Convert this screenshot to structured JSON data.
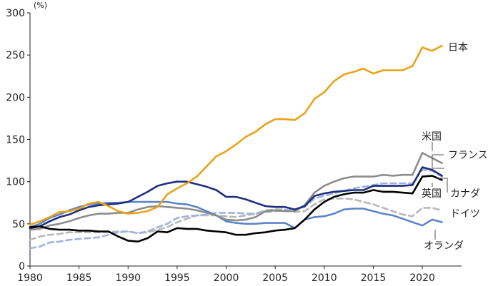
{
  "chart_data": {
    "type": "line",
    "title": "",
    "xlabel": "",
    "ylabel": "(%)",
    "xlim": [
      1980,
      2024
    ],
    "ylim": [
      0,
      300
    ],
    "xticks": [
      1980,
      1985,
      1990,
      1995,
      2000,
      2005,
      2010,
      2015,
      2020
    ],
    "yticks": [
      0,
      50,
      100,
      150,
      200,
      250,
      300
    ],
    "grid": false,
    "legend": "direct-labels",
    "x": [
      1980,
      1981,
      1982,
      1983,
      1984,
      1985,
      1986,
      1987,
      1988,
      1989,
      1990,
      1991,
      1992,
      1993,
      1994,
      1995,
      1996,
      1997,
      1998,
      1999,
      2000,
      2001,
      2002,
      2003,
      2004,
      2005,
      2006,
      2007,
      2008,
      2009,
      2010,
      2011,
      2012,
      2013,
      2014,
      2015,
      2016,
      2017,
      2018,
      2019,
      2020,
      2021,
      2022
    ],
    "series": [
      {
        "name": "日本",
        "color": "#E8A317",
        "dash": false,
        "values": [
          49,
          53,
          58,
          64,
          65,
          68,
          74,
          76,
          71,
          65,
          62,
          63,
          65,
          70,
          85,
          92,
          98,
          106,
          118,
          130,
          136,
          144,
          153,
          159,
          168,
          174,
          174,
          173,
          181,
          198,
          206,
          219,
          227,
          230,
          234,
          228,
          232,
          232,
          232,
          237,
          259,
          255,
          261
        ]
      },
      {
        "name": "米国",
        "color": "#8C8C8C",
        "dash": false,
        "values": [
          43,
          44,
          48,
          50,
          53,
          57,
          60,
          62,
          62,
          63,
          63,
          67,
          70,
          71,
          70,
          69,
          68,
          66,
          63,
          60,
          55,
          54,
          55,
          58,
          65,
          66,
          65,
          65,
          72,
          87,
          95,
          100,
          104,
          106,
          106,
          106,
          108,
          107,
          108,
          108,
          134,
          128,
          122
        ]
      },
      {
        "name": "フランス",
        "color": "#1E2F7F",
        "dash": false,
        "values": [
          45,
          47,
          53,
          58,
          61,
          66,
          70,
          72,
          73,
          74,
          76,
          82,
          88,
          95,
          98,
          100,
          100,
          97,
          94,
          90,
          82,
          82,
          79,
          75,
          71,
          70,
          70,
          67,
          71,
          83,
          86,
          88,
          89,
          90,
          90,
          95,
          95,
          95,
          95,
          96,
          117,
          114,
          107
        ]
      },
      {
        "name": "英国",
        "color": "#000000",
        "dash": false,
        "values": [
          46,
          47,
          44,
          43,
          43,
          42,
          42,
          41,
          41,
          35,
          30,
          29,
          33,
          41,
          40,
          45,
          44,
          44,
          42,
          41,
          40,
          37,
          37,
          39,
          40,
          42,
          43,
          45,
          55,
          67,
          76,
          82,
          85,
          87,
          87,
          90,
          88,
          88,
          87,
          86,
          106,
          107,
          102
        ]
      },
      {
        "name": "カナダ",
        "color": "#9FB2DE",
        "dash": true,
        "values": [
          21,
          23,
          28,
          29,
          31,
          32,
          33,
          34,
          37,
          40,
          41,
          39,
          41,
          46,
          50,
          57,
          59,
          60,
          61,
          63,
          63,
          63,
          62,
          62,
          64,
          65,
          66,
          67,
          70,
          80,
          83,
          86,
          89,
          92,
          94,
          96,
          98,
          98,
          98,
          98,
          114,
          113,
          106
        ]
      },
      {
        "name": "ドイツ",
        "color": "#B8B8B8",
        "dash": true,
        "values": [
          31,
          35,
          37,
          38,
          40,
          40,
          40,
          40,
          40,
          41,
          41,
          39,
          40,
          43,
          46,
          52,
          56,
          60,
          60,
          60,
          59,
          58,
          60,
          62,
          66,
          67,
          67,
          64,
          65,
          73,
          79,
          80,
          80,
          79,
          76,
          73,
          69,
          65,
          61,
          59,
          69,
          69,
          66
        ]
      },
      {
        "name": "オランダ",
        "color": "#5C85C8",
        "dash": false,
        "values": [
          46,
          50,
          57,
          61,
          66,
          70,
          73,
          74,
          75,
          75,
          76,
          76,
          76,
          76,
          76,
          74,
          73,
          70,
          65,
          60,
          53,
          51,
          50,
          50,
          51,
          51,
          51,
          45,
          55,
          58,
          59,
          62,
          67,
          68,
          68,
          65,
          62,
          60,
          56,
          52,
          48,
          55,
          52
        ]
      }
    ]
  }
}
